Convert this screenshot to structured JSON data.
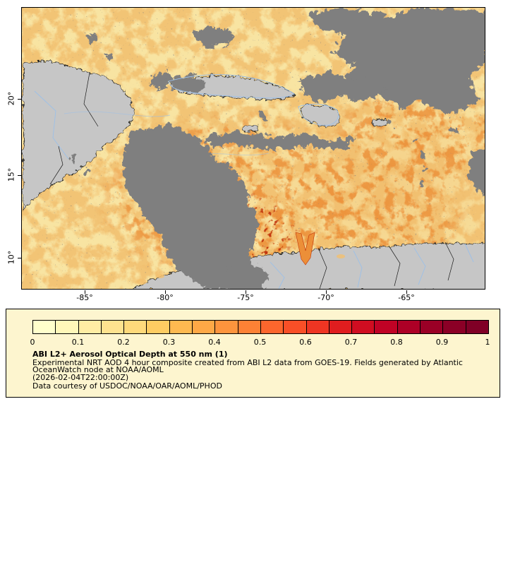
{
  "colors": {
    "page-bg": "#ffffff",
    "legend-bg": "#fdf5cf",
    "aod-low": "#f8e4a2",
    "aod-mid": "#f2bf6e",
    "aod-high": "#ec8f38",
    "aod-extreme": "#c03207",
    "cloud-gray": "#7f7f7f",
    "land-gray": "#c6c6c6",
    "river-blue": "#9cc0e8",
    "border-black": "#1a1a1a",
    "frame": "#000000"
  },
  "map": {
    "x_ticks": [
      "-85°",
      "-80°",
      "-75°",
      "-70°",
      "-65°"
    ],
    "y_ticks": [
      "20°",
      "15°",
      "10°"
    ]
  },
  "legend": {
    "scale_ticks": [
      "0",
      "0.1",
      "0.2",
      "0.3",
      "0.4",
      "0.5",
      "0.6",
      "0.7",
      "0.8",
      "0.9",
      "1"
    ],
    "colorbar": [
      "#ffffcc",
      "#fff7b9",
      "#ffeda4",
      "#fee28f",
      "#fed97b",
      "#fecc62",
      "#feb950",
      "#fea846",
      "#fd943d",
      "#fd8135",
      "#fc662d",
      "#f94f27",
      "#ee3523",
      "#e01d1f",
      "#d00d21",
      "#c00225",
      "#ad0026",
      "#9a0026",
      "#8b0026",
      "#800026"
    ],
    "title": "ABI L2+ Aerosol Optical Depth at 550 nm (1)",
    "desc_line1": "Experimental NRT AOD 4 hour composite created from ABI L2 data from GOES-19. Fields generated by Atlantic",
    "desc_line2": "OceanWatch node at NOAA/AOML",
    "timestamp": "(2026-02-04T22:00:00Z)",
    "credit": "Data courtesy of USDOC/NOAA/OAR/AOML/PHOD"
  }
}
